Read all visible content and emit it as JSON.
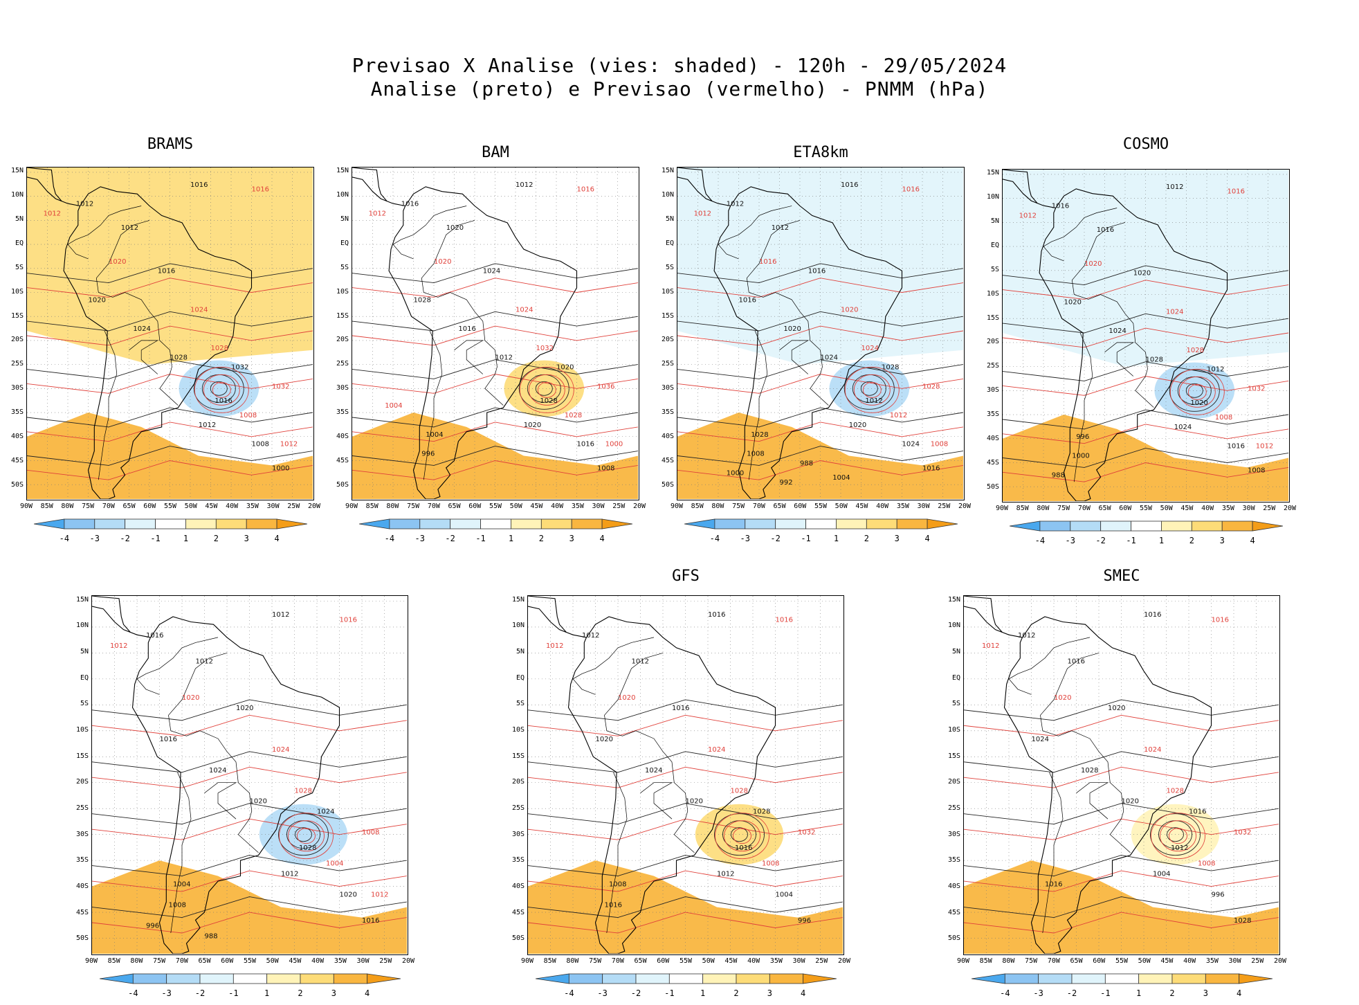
{
  "header": {
    "line1": "Previsao X Analise (vies: shaded) - 120h - 29/05/2024",
    "line2": "Analise (preto) e Previsao (vermelho) - PNMM (hPa)"
  },
  "lat_labels": [
    "15N",
    "10N",
    "5N",
    "EQ",
    "5S",
    "10S",
    "15S",
    "20S",
    "25S",
    "30S",
    "35S",
    "40S",
    "45S",
    "50S"
  ],
  "lon_labels": [
    "90W",
    "85W",
    "80W",
    "75W",
    "70W",
    "65W",
    "60W",
    "55W",
    "50W",
    "45W",
    "40W",
    "35W",
    "30W",
    "25W",
    "20W"
  ],
  "colorbar": {
    "labels": [
      "-4",
      "-3",
      "-2",
      "-1",
      "1",
      "2",
      "3",
      "4"
    ],
    "colors": [
      "#4aa8ee",
      "#8cc4f2",
      "#b4dcf6",
      "#e0f4fb",
      "#ffffff",
      "#fff3b8",
      "#fddc78",
      "#f9b640",
      "#f49d18"
    ]
  },
  "panels": [
    {
      "id": "brams",
      "title": "BRAMS",
      "bias": {
        "north": 2.4,
        "south": 3.2,
        "low_anomaly": -2.6
      },
      "labels_black": [
        "1016",
        "1012",
        "1012",
        "1016",
        "1020",
        "1024",
        "1028",
        "1032",
        "1016",
        "1012",
        "1008",
        "1000"
      ],
      "labels_red": [
        "1016",
        "1012",
        "1020",
        "1024",
        "1028",
        "1032",
        "1008",
        "1012"
      ]
    },
    {
      "id": "bam",
      "title": "BAM",
      "bias": {
        "north": 0.6,
        "south": 3.4,
        "low_anomaly": 2.8
      },
      "labels_black": [
        "1012",
        "1016",
        "1020",
        "1024",
        "1028",
        "1016",
        "1012",
        "1020",
        "1028",
        "1020",
        "1016",
        "1008",
        "1004",
        "996"
      ],
      "labels_red": [
        "1016",
        "1012",
        "1020",
        "1024",
        "1032",
        "1036",
        "1028",
        "1000",
        "1004"
      ]
    },
    {
      "id": "eta8km",
      "title": "ETA8km",
      "bias": {
        "north": -1.6,
        "south": 3.5,
        "low_anomaly": -2.9
      },
      "labels_black": [
        "1016",
        "1012",
        "1012",
        "1016",
        "1016",
        "1020",
        "1024",
        "1028",
        "1012",
        "1020",
        "1024",
        "1016",
        "1028",
        "1008",
        "1000",
        "992",
        "988",
        "1004"
      ],
      "labels_red": [
        "1016",
        "1012",
        "1016",
        "1020",
        "1024",
        "1028",
        "1012",
        "1008"
      ]
    },
    {
      "id": "cosmo",
      "title": "COSMO",
      "bias": {
        "north": -1.2,
        "south": 3.6,
        "low_anomaly": -2.4
      },
      "labels_black": [
        "1012",
        "1016",
        "1016",
        "1020",
        "1020",
        "1024",
        "1028",
        "1012",
        "1020",
        "1024",
        "1016",
        "1008",
        "996",
        "1000",
        "988"
      ],
      "labels_red": [
        "1016",
        "1012",
        "1020",
        "1024",
        "1028",
        "1032",
        "1008",
        "1012"
      ]
    },
    {
      "id": "panel5",
      "title": "",
      "bias": {
        "north": -0.8,
        "south": 3.4,
        "low_anomaly": -2.2
      },
      "labels_black": [
        "1012",
        "1016",
        "1012",
        "1020",
        "1016",
        "1024",
        "1020",
        "1024",
        "1028",
        "1012",
        "1020",
        "1016",
        "1004",
        "1008",
        "996",
        "988"
      ],
      "labels_red": [
        "1016",
        "1012",
        "1020",
        "1024",
        "1028",
        "1008",
        "1004",
        "1012"
      ]
    },
    {
      "id": "gfs",
      "title": "GFS",
      "bias": {
        "north": 0.8,
        "south": 3.5,
        "low_anomaly": 2.4
      },
      "labels_black": [
        "1016",
        "1012",
        "1012",
        "1016",
        "1020",
        "1024",
        "1020",
        "1028",
        "1016",
        "1012",
        "1004",
        "996",
        "1008",
        "1016"
      ],
      "labels_red": [
        "1016",
        "1012",
        "1020",
        "1024",
        "1028",
        "1032",
        "1008"
      ]
    },
    {
      "id": "smec",
      "title": "SMEC",
      "bias": {
        "north": -0.6,
        "south": 3.4,
        "low_anomaly": 2.0
      },
      "labels_black": [
        "1016",
        "1012",
        "1016",
        "1020",
        "1024",
        "1028",
        "1020",
        "1016",
        "1012",
        "1004",
        "996",
        "1028",
        "1016"
      ],
      "labels_red": [
        "1016",
        "1012",
        "1020",
        "1024",
        "1028",
        "1032",
        "1008"
      ]
    }
  ]
}
